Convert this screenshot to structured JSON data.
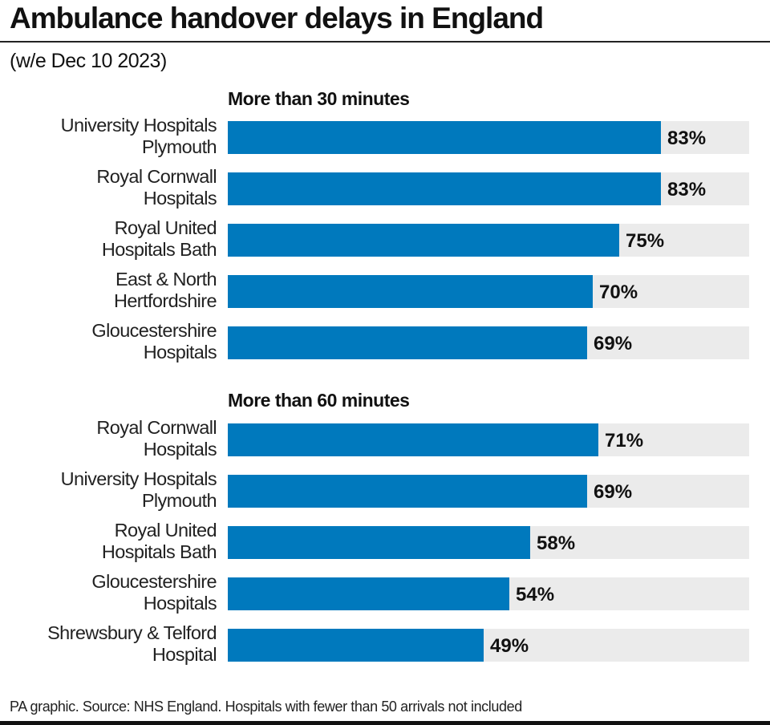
{
  "header": {
    "title": "Ambulance handover delays in England",
    "subtitle": "(w/e Dec 10 2023)"
  },
  "footer": {
    "source": "PA graphic. Source: NHS England. Hospitals with fewer than 50 arrivals not included"
  },
  "colors": {
    "bar": "#0079bd",
    "track": "#ebebeb"
  },
  "chart_data": [
    {
      "type": "bar",
      "orientation": "horizontal",
      "title": "More than 30 minutes",
      "xlim": [
        0,
        100
      ],
      "unit": "%",
      "categories": [
        [
          "University Hospitals",
          "Plymouth"
        ],
        [
          "Royal Cornwall",
          "Hospitals"
        ],
        [
          "Royal United",
          "Hospitals Bath"
        ],
        [
          "East & North",
          "Hertfordshire"
        ],
        [
          "Gloucestershire",
          "Hospitals"
        ]
      ],
      "values": [
        83,
        83,
        75,
        70,
        69
      ],
      "value_labels": [
        "83%",
        "83%",
        "75%",
        "70%",
        "69%"
      ]
    },
    {
      "type": "bar",
      "orientation": "horizontal",
      "title": "More than 60 minutes",
      "xlim": [
        0,
        100
      ],
      "unit": "%",
      "categories": [
        [
          "Royal Cornwall",
          "Hospitals"
        ],
        [
          "University Hospitals",
          "Plymouth"
        ],
        [
          "Royal United",
          "Hospitals Bath"
        ],
        [
          "Gloucestershire",
          "Hospitals"
        ],
        [
          "Shrewsbury & Telford",
          "Hospital"
        ]
      ],
      "values": [
        71,
        69,
        58,
        54,
        49
      ],
      "value_labels": [
        "71%",
        "69%",
        "58%",
        "54%",
        "49%"
      ]
    }
  ]
}
